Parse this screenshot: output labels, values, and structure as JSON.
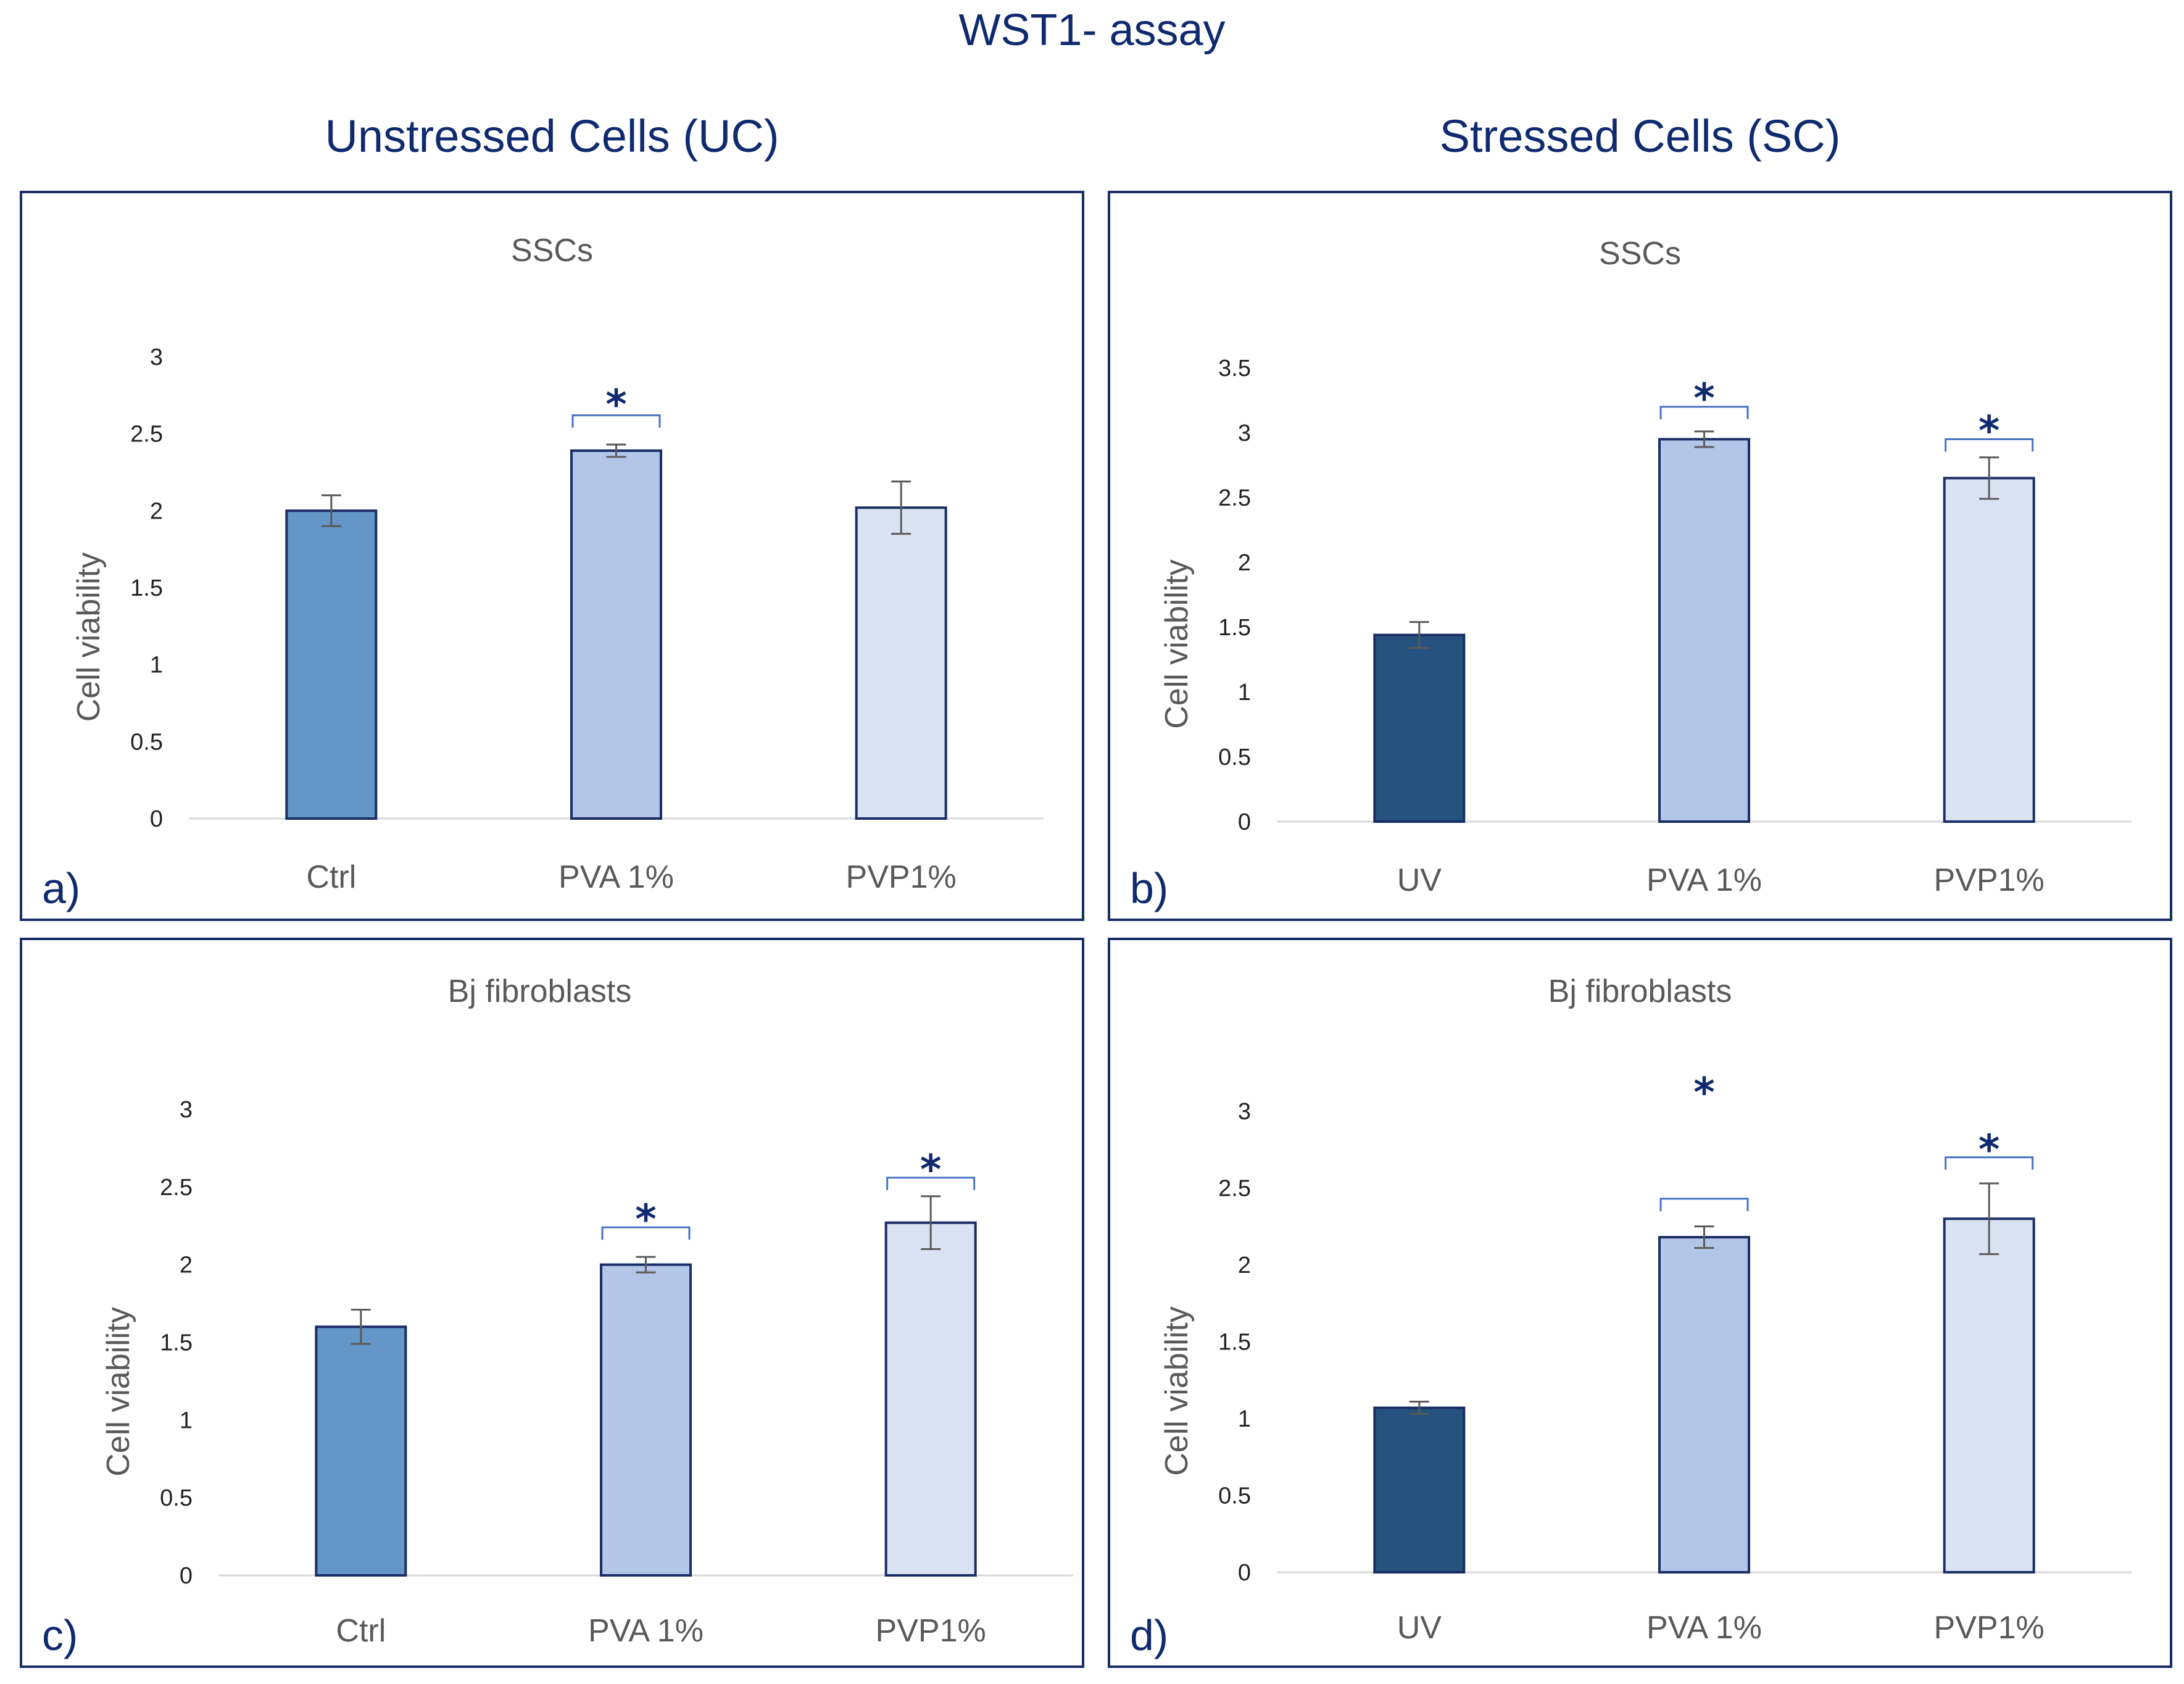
{
  "title": "WST1- assay",
  "columns": {
    "left": "Unstressed Cells (UC)",
    "right": "Stressed Cells (SC)"
  },
  "colors": {
    "frame": "#1a2e66",
    "star": "#0f2a6e",
    "bracket": "#4472c4",
    "error_bar": "#595959",
    "axis": "#d9d9d9"
  },
  "chart_data": [
    {
      "id": "a",
      "type": "bar",
      "letter": "a)",
      "title": "SSCs",
      "ylabel": "Cell viability",
      "xlabel": "",
      "ylim": [
        0,
        3
      ],
      "yticks": [
        "0",
        "0.5",
        "1",
        "1.5",
        "2",
        "2.5",
        "3"
      ],
      "categories": [
        "Ctrl",
        "PVA 1%",
        "PVP1%"
      ],
      "values": [
        2.0,
        2.39,
        2.02
      ],
      "errors": [
        0.1,
        0.04,
        0.17
      ],
      "colors": [
        "#6497c8",
        "#b3c6e7",
        "#dae3f3"
      ],
      "significance": [
        false,
        true,
        false
      ],
      "sig_marker": "*",
      "brackets": [
        false,
        true,
        false
      ],
      "bracket_y": [
        null,
        2.62,
        null
      ],
      "star_y": [
        null,
        2.72,
        null
      ]
    },
    {
      "id": "b",
      "type": "bar",
      "letter": "b)",
      "title": "SSCs",
      "ylabel": "Cell viability",
      "xlabel": "",
      "ylim": [
        0,
        3.5
      ],
      "yticks": [
        "0",
        "0.5",
        "1",
        "1.5",
        "2",
        "2.5",
        "3",
        "3.5"
      ],
      "categories": [
        "UV",
        "PVA 1%",
        "PVP1%"
      ],
      "values": [
        1.44,
        2.95,
        2.65
      ],
      "errors": [
        0.1,
        0.06,
        0.16
      ],
      "colors": [
        "#25527e",
        "#b3c6e7",
        "#dae3f3"
      ],
      "significance": [
        false,
        true,
        true
      ],
      "sig_marker": "*",
      "brackets": [
        false,
        true,
        true
      ],
      "bracket_y": [
        null,
        3.2,
        2.95
      ],
      "star_y": [
        null,
        3.3,
        3.05
      ]
    },
    {
      "id": "c",
      "type": "bar",
      "letter": "c)",
      "title": "Bj fibroblasts",
      "ylabel": "Cell viability",
      "xlabel": "",
      "ylim": [
        0,
        3
      ],
      "yticks": [
        "0",
        "0.5",
        "1",
        "1.5",
        "2",
        "2.5",
        "3"
      ],
      "categories": [
        "Ctrl",
        "PVA 1%",
        "PVP1%"
      ],
      "values": [
        1.6,
        2.0,
        2.27
      ],
      "errors": [
        0.11,
        0.05,
        0.17
      ],
      "colors": [
        "#6497c8",
        "#b3c6e7",
        "#dae3f3"
      ],
      "significance": [
        false,
        true,
        true
      ],
      "sig_marker": "*",
      "brackets": [
        false,
        true,
        true
      ],
      "bracket_y": [
        null,
        2.24,
        2.56
      ],
      "star_y": [
        null,
        2.32,
        2.64
      ]
    },
    {
      "id": "d",
      "type": "bar",
      "letter": "d)",
      "title": "Bj fibroblasts",
      "ylabel": "Cell viability",
      "xlabel": "",
      "ylim": [
        0,
        3
      ],
      "yticks": [
        "0",
        "0.5",
        "1",
        "1.5",
        "2",
        "2.5",
        "3"
      ],
      "categories": [
        "UV",
        "PVA 1%",
        "PVP1%"
      ],
      "values": [
        1.07,
        2.18,
        2.3
      ],
      "errors": [
        0.04,
        0.07,
        0.23
      ],
      "colors": [
        "#25527e",
        "#b3c6e7",
        "#dae3f3"
      ],
      "significance": [
        false,
        true,
        true
      ],
      "sig_marker": "*",
      "brackets": [
        false,
        true,
        true
      ],
      "bracket_y": [
        null,
        2.43,
        2.7
      ],
      "star_y": [
        null,
        3.15,
        2.78
      ]
    }
  ]
}
